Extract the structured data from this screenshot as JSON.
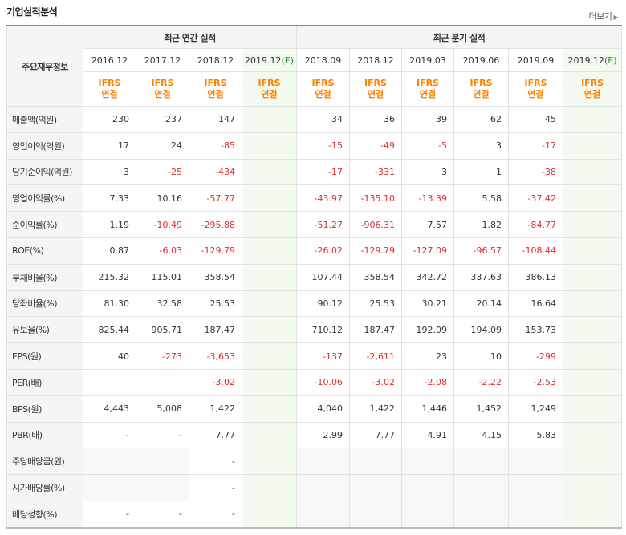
{
  "title": "기업실적분석",
  "more_label": "더보기",
  "header": {
    "label_col": "주요재무정보",
    "annual_group": "최근 연간 실적",
    "quarter_group": "최근 분기 실적",
    "estimate_suffix": "(E)",
    "annual_periods": [
      "2016.12",
      "2017.12",
      "2018.12",
      "2019.12"
    ],
    "quarter_periods": [
      "2018.09",
      "2018.12",
      "2019.03",
      "2019.06",
      "2019.09",
      "2019.12"
    ],
    "ifrs": "IFRS",
    "consolidated": "연결"
  },
  "rows": [
    {
      "label": "매출액(억원)",
      "values": [
        "230",
        "237",
        "147",
        "",
        "34",
        "36",
        "39",
        "62",
        "45",
        ""
      ]
    },
    {
      "label": "영업이익(억원)",
      "values": [
        "17",
        "24",
        "-85",
        "",
        "-15",
        "-49",
        "-5",
        "3",
        "-17",
        ""
      ]
    },
    {
      "label": "당기순이익(억원)",
      "values": [
        "3",
        "-25",
        "-434",
        "",
        "-17",
        "-331",
        "3",
        "1",
        "-38",
        ""
      ]
    },
    {
      "label": "영업이익률(%)",
      "values": [
        "7.33",
        "10.16",
        "-57.77",
        "",
        "-43.97",
        "-135.10",
        "-13.39",
        "5.58",
        "-37.42",
        ""
      ]
    },
    {
      "label": "순이익률(%)",
      "values": [
        "1.19",
        "-10.49",
        "-295.88",
        "",
        "-51.27",
        "-906.31",
        "7.57",
        "1.82",
        "-84.77",
        ""
      ]
    },
    {
      "label": "ROE(%)",
      "values": [
        "0.87",
        "-6.03",
        "-129.79",
        "",
        "-26.02",
        "-129.79",
        "-127.09",
        "-96.57",
        "-108.44",
        ""
      ]
    },
    {
      "label": "부채비율(%)",
      "values": [
        "215.32",
        "115.01",
        "358.54",
        "",
        "107.44",
        "358.54",
        "342.72",
        "337.63",
        "386.13",
        ""
      ]
    },
    {
      "label": "당좌비율(%)",
      "values": [
        "81.30",
        "32.58",
        "25.53",
        "",
        "90.12",
        "25.53",
        "30.21",
        "20.14",
        "16.64",
        ""
      ]
    },
    {
      "label": "유보율(%)",
      "values": [
        "825.44",
        "905.71",
        "187.47",
        "",
        "710.12",
        "187.47",
        "192.09",
        "194.09",
        "153.73",
        ""
      ]
    },
    {
      "label": "EPS(원)",
      "values": [
        "40",
        "-273",
        "-3,653",
        "",
        "-137",
        "-2,611",
        "23",
        "10",
        "-299",
        ""
      ]
    },
    {
      "label": "PER(배)",
      "values": [
        "",
        "",
        "-3.02",
        "",
        "-10.06",
        "-3.02",
        "-2.08",
        "-2.22",
        "-2.53",
        ""
      ]
    },
    {
      "label": "BPS(원)",
      "values": [
        "4,443",
        "5,008",
        "1,422",
        "",
        "4,040",
        "1,422",
        "1,446",
        "1,452",
        "1,249",
        ""
      ]
    },
    {
      "label": "PBR(배)",
      "values": [
        "-",
        "-",
        "7.77",
        "",
        "2.99",
        "7.77",
        "4.91",
        "4.15",
        "5.83",
        ""
      ]
    },
    {
      "label": "주당배당금(원)",
      "values": [
        "",
        "",
        "-",
        "",
        "",
        "",
        "",
        "",
        "",
        ""
      ]
    },
    {
      "label": "시가배당률(%)",
      "values": [
        "",
        "",
        "-",
        "",
        "",
        "",
        "",
        "",
        "",
        ""
      ]
    },
    {
      "label": "배당성향(%)",
      "values": [
        "-",
        "-",
        "-",
        "",
        "",
        "",
        "",
        "",
        "",
        ""
      ]
    }
  ],
  "colors": {
    "negative": "#e42b2b",
    "ifrs": "#ff7f00",
    "estimate_bg": "#f2f9ee",
    "estimate_mark": "#2e8b3e"
  }
}
